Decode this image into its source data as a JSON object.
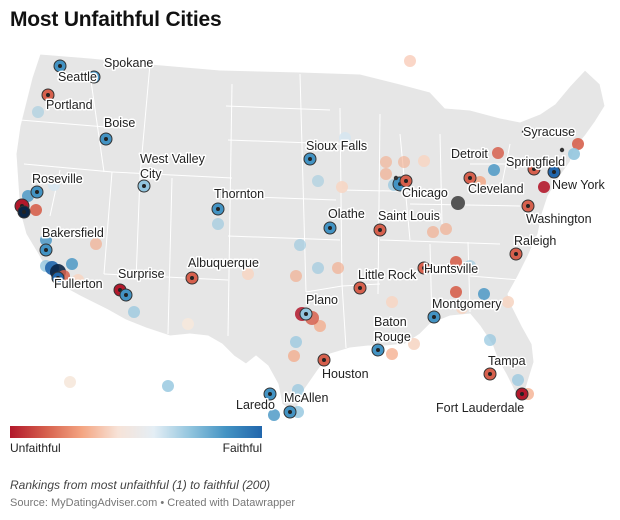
{
  "title": "Most Unfaithful Cities",
  "legend": {
    "low_label": "Unfaithful",
    "high_label": "Faithful"
  },
  "colors": {
    "unfaithful": "#b2182b",
    "faithful": "#2166ac",
    "land": "#e6e6e6",
    "state_border": "#ffffff"
  },
  "subtitle": "Rankings from most unfaithful (1) to faithful (200)",
  "source": "Source: MyDatingAdviser.com • Created with Datawrapper",
  "labeled_cities": [
    "Spokane",
    "Seattle",
    "Portland",
    "Boise",
    "West Valley City",
    "Roseville",
    "Bakersfield",
    "Fullerton",
    "Surprise",
    "Thornton",
    "Albuquerque",
    "Sioux Falls",
    "Olathe",
    "Saint Louis",
    "Chicago",
    "Detroit",
    "Cleveland",
    "Syracuse",
    "Springfield",
    "New York",
    "Washington",
    "Raleigh",
    "Huntsville",
    "Little Rock",
    "Montgomery",
    "Plano",
    "Baton Rouge",
    "Houston",
    "Laredo",
    "McAllen",
    "Tampa",
    "Fort Lauderdale"
  ]
}
